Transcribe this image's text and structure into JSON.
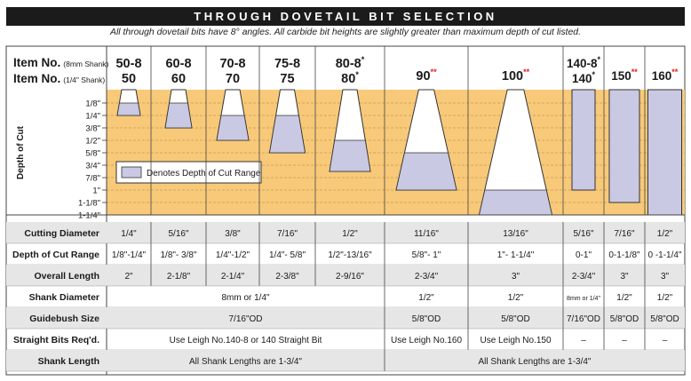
{
  "title": "THROUGH DOVETAIL BIT SELECTION",
  "subtitle": "All through dovetail bits have 8° angles. All carbide bit heights are slightly greater than maximum depth of cut listed.",
  "item_label_8mm": "Item No.",
  "item_label_8mm_sub": "(8mm Shank)",
  "item_label_quarter": "Item No.",
  "item_label_quarter_sub": "(1/4\" Shank)",
  "depth_axis_label": "Depth of Cut",
  "depth_ticks": [
    "1/8\"",
    "1/4\"",
    "3/8\"",
    "1/2\"",
    "5/8\"",
    "3/4\"",
    "7/8\"",
    "1\"",
    "1-1/8\"",
    "1-1/4\""
  ],
  "legend_label": "Denotes Depth of Cut Range",
  "star": "*",
  "double_star": "**",
  "colors": {
    "header": "#1b1b1b",
    "chart_fill": "#f7c979",
    "cut_range": "#c9c9e3",
    "row_shade": "#e6e6e6",
    "double_star": "#e02020"
  },
  "columns": [
    {
      "top": "50-8",
      "bottom": "50"
    },
    {
      "top": "60-8",
      "bottom": "60"
    },
    {
      "top": "70-8",
      "bottom": "70"
    },
    {
      "top": "75-8",
      "bottom": "75"
    },
    {
      "top": "80-8",
      "top_mark": "*",
      "bottom": "80",
      "bottom_mark": "*"
    },
    {
      "bottom": "90",
      "bottom_mark": "**"
    },
    {
      "bottom": "100",
      "bottom_mark": "**"
    },
    {
      "top": "140-8",
      "top_mark": "*",
      "bottom": "140",
      "bottom_mark": "*"
    },
    {
      "bottom": "150",
      "bottom_mark": "**"
    },
    {
      "bottom": "160",
      "bottom_mark": "**"
    }
  ],
  "cut_ranges": [
    {
      "min": "1/8\"",
      "max": "1/4\""
    },
    {
      "min": "1/8\"",
      "max": "3/8\""
    },
    {
      "min": "1/4\"",
      "max": "1/2\""
    },
    {
      "min": "1/4\"",
      "max": "5/8\""
    },
    {
      "min": "1/2\"",
      "max": "13/16\""
    },
    {
      "min": "5/8\"",
      "max": "1\""
    },
    {
      "min": "1\"",
      "max": "1-1/4\""
    },
    {
      "min": "0",
      "max": "1\""
    },
    {
      "min": "0",
      "max": "1-1/8\""
    },
    {
      "min": "0",
      "max": "1-1/4\""
    }
  ],
  "rows": [
    {
      "label": "Cutting Diameter",
      "cells": [
        "1/4\"",
        "5/16\"",
        "3/8\"",
        "7/16\"",
        "1/2\"",
        "11/16\"",
        "13/16\"",
        "5/16\"",
        "7/16\"",
        "1/2\""
      ]
    },
    {
      "label": "Depth of Cut Range",
      "cells": [
        "1/8\"-1/4\"",
        "1/8\"- 3/8\"",
        "1/4\"-1/2\"",
        "1/4\"- 5/8\"",
        "1/2\"-13/16\"",
        "5/8\"- 1\"",
        "1\"- 1-1/4\"",
        "0-1\"",
        "0-1-1/8\"",
        "0 -1-1/4\""
      ]
    },
    {
      "label": "Overall Length",
      "cells": [
        "2\"",
        "2-1/8\"",
        "2-1/4\"",
        "2-3/8\"",
        "2-9/16\"",
        "2-3/4\"",
        "3\"",
        "2-3/4\"",
        "3\"",
        "3\""
      ]
    },
    {
      "label": "Shank Diameter",
      "cells": [
        "8mm or 1/4\"",
        "1/2\"",
        "1/2\"",
        "8mm or 1/4\"",
        "1/2\"",
        "1/2\""
      ]
    },
    {
      "label": "Guidebush Size",
      "cells": [
        "7/16\"OD",
        "5/8\"OD",
        "5/8\"OD",
        "7/16\"OD",
        "5/8\"OD",
        "5/8\"OD"
      ]
    },
    {
      "label": "Straight Bits Req'd.",
      "cells": [
        "Use Leigh No.140-8 or 140 Straight Bit",
        "Use Leigh No.160",
        "Use Leigh No.150",
        "–",
        "–",
        "–"
      ]
    },
    {
      "label": "Shank Length",
      "cells": [
        "All Shank Lengths are 1-3/4\"",
        "All Shank Lengths are 1-3/4\""
      ]
    }
  ]
}
